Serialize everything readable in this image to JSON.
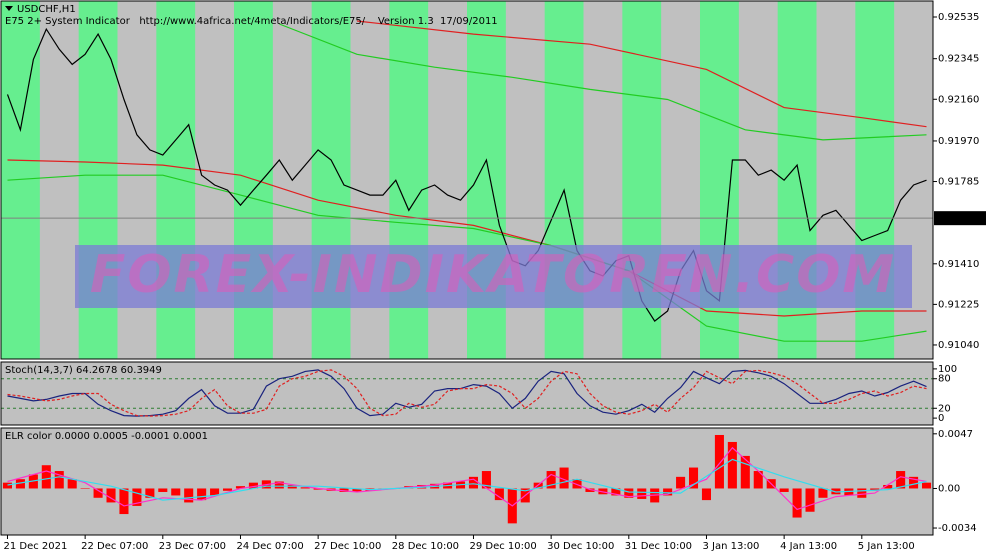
{
  "chart_data": [
    {
      "type": "line",
      "title": "USDCHF,H1",
      "subtitle": "E75 2+ System Indicator   http://www.4africa.net/4meta/Indicators/E75/    Version 1.3  17/09/2011",
      "watermark": "FOREX-INDIKATOREN.COM",
      "stripe_colors": [
        "#66ee8f",
        "#c0c0c0"
      ],
      "categories": [
        "21 Dec 2021",
        null,
        null,
        null,
        null,
        null,
        "22 Dec 07:00",
        null,
        null,
        null,
        null,
        null,
        "23 Dec 07:00",
        null,
        null,
        null,
        null,
        null,
        "24 Dec 07:00",
        null,
        null,
        null,
        null,
        null,
        "27 Dec 10:00",
        null,
        null,
        null,
        null,
        null,
        "28 Dec 10:00",
        null,
        null,
        null,
        null,
        null,
        "29 Dec 10:00",
        null,
        null,
        null,
        null,
        null,
        "30 Dec 10:00",
        null,
        null,
        null,
        null,
        null,
        "31 Dec 10:00",
        null,
        null,
        null,
        null,
        null,
        "3 Jan 13:00",
        null,
        null,
        null,
        null,
        null,
        "4 Jan 13:00",
        null,
        null,
        null,
        null,
        null,
        "5 Jan 13:00",
        null,
        null,
        null,
        null,
        null
      ],
      "series": [
        {
          "color": "#000000",
          "values": [
            0.92182,
            0.92021,
            0.92342,
            0.9248,
            0.92388,
            0.92319,
            0.92365,
            0.92457,
            0.92342,
            0.92159,
            0.91998,
            0.91929,
            0.91906,
            0.91975,
            0.92044,
            0.91814,
            0.91769,
            0.91746,
            0.91677,
            0.91746,
            0.91814,
            0.91883,
            0.91791,
            0.9186,
            0.91929,
            0.91883,
            0.91769,
            0.91746,
            0.91723,
            0.91723,
            0.91791,
            0.91654,
            0.91746,
            0.91769,
            0.91723,
            0.917,
            0.91769,
            0.91883,
            0.91585,
            0.91424,
            0.91401,
            0.9147,
            0.91608,
            0.91746,
            0.9147,
            0.91378,
            0.91355,
            0.91424,
            0.91447,
            0.91241,
            0.91149,
            0.91195,
            0.91378,
            0.9147,
            0.91287,
            0.91241,
            0.91883,
            0.91883,
            0.91814,
            0.91837,
            0.91791,
            0.9186,
            0.91562,
            0.91631,
            0.91654,
            0.91585,
            0.91516,
            0.91539,
            0.91562,
            0.917,
            0.91769,
            0.91791
          ]
        }
      ],
      "overlays": [
        {
          "color": "#e02020",
          "x": [
            0,
            6,
            12,
            18,
            24,
            30,
            36,
            42,
            48,
            54,
            60,
            66,
            71
          ],
          "values": [
            0.91883,
            0.91874,
            0.9186,
            0.91814,
            0.917,
            0.91631,
            0.91585,
            0.91493,
            0.91378,
            0.91195,
            0.91172,
            0.91195,
            0.91195
          ]
        },
        {
          "color": "#e02020",
          "x": [
            27,
            36,
            45,
            54,
            60,
            66,
            71
          ],
          "values": [
            0.92517,
            0.92457,
            0.92411,
            0.92296,
            0.92122,
            0.92076,
            0.92035
          ]
        },
        {
          "color": "#22cc22",
          "x": [
            21,
            27,
            33,
            39,
            45,
            51,
            57,
            63,
            71
          ],
          "values": [
            0.92503,
            0.92365,
            0.92306,
            0.9226,
            0.92205,
            0.92159,
            0.92021,
            0.91975,
            0.91998
          ]
        },
        {
          "color": "#22cc22",
          "x": [
            0,
            6,
            12,
            18,
            24,
            30,
            36,
            42,
            48,
            54,
            60,
            66,
            71
          ],
          "values": [
            0.91791,
            0.91814,
            0.91814,
            0.91723,
            0.91631,
            0.91599,
            0.91571,
            0.91493,
            0.91378,
            0.91126,
            0.91057,
            0.91057,
            0.91103
          ]
        }
      ],
      "last_price": 0.91618,
      "ylim": [
        0.90976,
        0.92608
      ],
      "yticks": [
        0.92535,
        0.92345,
        {
          "value": 0.9216,
          "label": "0.92160"
        },
        {
          "value": 0.9197,
          "label": "0.91970"
        },
        0.91785,
        {
          "value": 0.9141,
          "label": "0.91410"
        },
        0.91225,
        {
          "value": 0.9104,
          "label": "0.91040"
        }
      ]
    },
    {
      "type": "line",
      "title": "Stoch(14,3,7) 64.2678 60.3949",
      "series": [
        {
          "color": "#1a237e",
          "values": [
            45,
            40,
            35,
            38,
            45,
            50,
            50,
            28,
            15,
            5,
            4,
            5,
            8,
            15,
            40,
            58,
            25,
            10,
            10,
            18,
            65,
            80,
            85,
            95,
            98,
            85,
            60,
            20,
            5,
            8,
            30,
            22,
            28,
            55,
            60,
            60,
            68,
            65,
            50,
            20,
            40,
            75,
            95,
            90,
            50,
            25,
            12,
            8,
            15,
            28,
            12,
            40,
            62,
            95,
            82,
            70,
            95,
            97,
            92,
            85,
            70,
            50,
            30,
            30,
            38,
            50,
            55,
            45,
            52,
            65,
            75,
            64
          ]
        },
        {
          "color": "#e02020",
          "dashed": true,
          "values": [
            48,
            45,
            40,
            35,
            38,
            45,
            50,
            50,
            28,
            15,
            5,
            4,
            5,
            8,
            15,
            40,
            58,
            25,
            10,
            10,
            18,
            65,
            80,
            85,
            95,
            98,
            85,
            60,
            20,
            5,
            8,
            30,
            22,
            28,
            55,
            60,
            60,
            68,
            65,
            50,
            20,
            40,
            75,
            95,
            90,
            50,
            25,
            12,
            8,
            15,
            28,
            12,
            40,
            62,
            95,
            82,
            70,
            95,
            97,
            92,
            85,
            70,
            50,
            30,
            30,
            38,
            50,
            55,
            45,
            52,
            65,
            60
          ]
        }
      ],
      "levels": [
        20,
        80
      ],
      "ylim": [
        -14,
        114
      ],
      "yticks": [
        0,
        20,
        80,
        100
      ]
    },
    {
      "type": "bar",
      "title": "ELR color 0.0000 0.0005 -0.0001 0.0001",
      "color": "#ff0000",
      "values": [
        0.0005,
        0.0008,
        0.0012,
        0.002,
        0.0015,
        0.0008,
        0,
        -0.0008,
        -0.0012,
        -0.0022,
        -0.0015,
        -0.0008,
        -0.0003,
        -0.0006,
        -0.0012,
        -0.001,
        -0.0006,
        -0.0002,
        0.0002,
        0.0005,
        0.0007,
        0.0006,
        0.0003,
        0.0001,
        -0.0001,
        -0.0002,
        -0.0003,
        -0.0003,
        -0.0002,
        -0.0001,
        0,
        0.0002,
        0.0003,
        0.0004,
        0.0005,
        0.0006,
        0.001,
        0.0015,
        -0.001,
        -0.003,
        -0.0012,
        0.0005,
        0.0015,
        0.0018,
        0.0008,
        -0.0003,
        -0.0005,
        -0.0006,
        -0.0008,
        -0.0009,
        -0.0012,
        -0.0006,
        0.001,
        0.0018,
        -0.001,
        0.0046,
        0.004,
        0.0028,
        0.0015,
        0.0008,
        -0.0003,
        -0.0025,
        -0.002,
        -0.0008,
        -0.0005,
        -0.0006,
        -0.0008,
        -0.0002,
        0.0003,
        0.0015,
        0.001,
        0.0005
      ],
      "overlays": [
        {
          "color": "#ff33cc",
          "x": [
            0,
            3,
            6,
            9,
            12,
            15,
            18,
            21,
            24,
            27,
            30,
            33,
            36,
            39,
            42,
            45,
            48,
            51,
            54,
            56,
            58,
            61,
            64,
            67,
            69,
            71
          ],
          "values": [
            0.0006,
            0.0015,
            0.0005,
            -0.0015,
            -0.0008,
            -0.001,
            0,
            0.0005,
            0,
            -0.0003,
            0,
            0.0003,
            0.0008,
            -0.0015,
            0.0012,
            -0.0001,
            -0.0007,
            -0.0005,
            0.0008,
            0.0035,
            0.0015,
            -0.0018,
            -0.0007,
            -0.0004,
            0.001,
            0.0006
          ]
        },
        {
          "color": "#33ddee",
          "x": [
            0,
            4,
            8,
            12,
            16,
            20,
            24,
            28,
            32,
            36,
            40,
            44,
            48,
            52,
            56,
            60,
            64,
            68,
            71
          ],
          "values": [
            0.0003,
            0.001,
            0.0002,
            -0.001,
            -0.0006,
            0.0002,
            0.0002,
            -0.0001,
            0.0001,
            0.0004,
            -0.0002,
            0.0008,
            -0.0003,
            -0.0004,
            0.0025,
            0.001,
            -0.0003,
            -0.0001,
            0.0006
          ]
        }
      ],
      "ylim": [
        -0.004,
        0.0052
      ],
      "yticks": [
        0.0047,
        {
          "value": 0,
          "label": "0.00"
        },
        -0.0034
      ]
    }
  ]
}
